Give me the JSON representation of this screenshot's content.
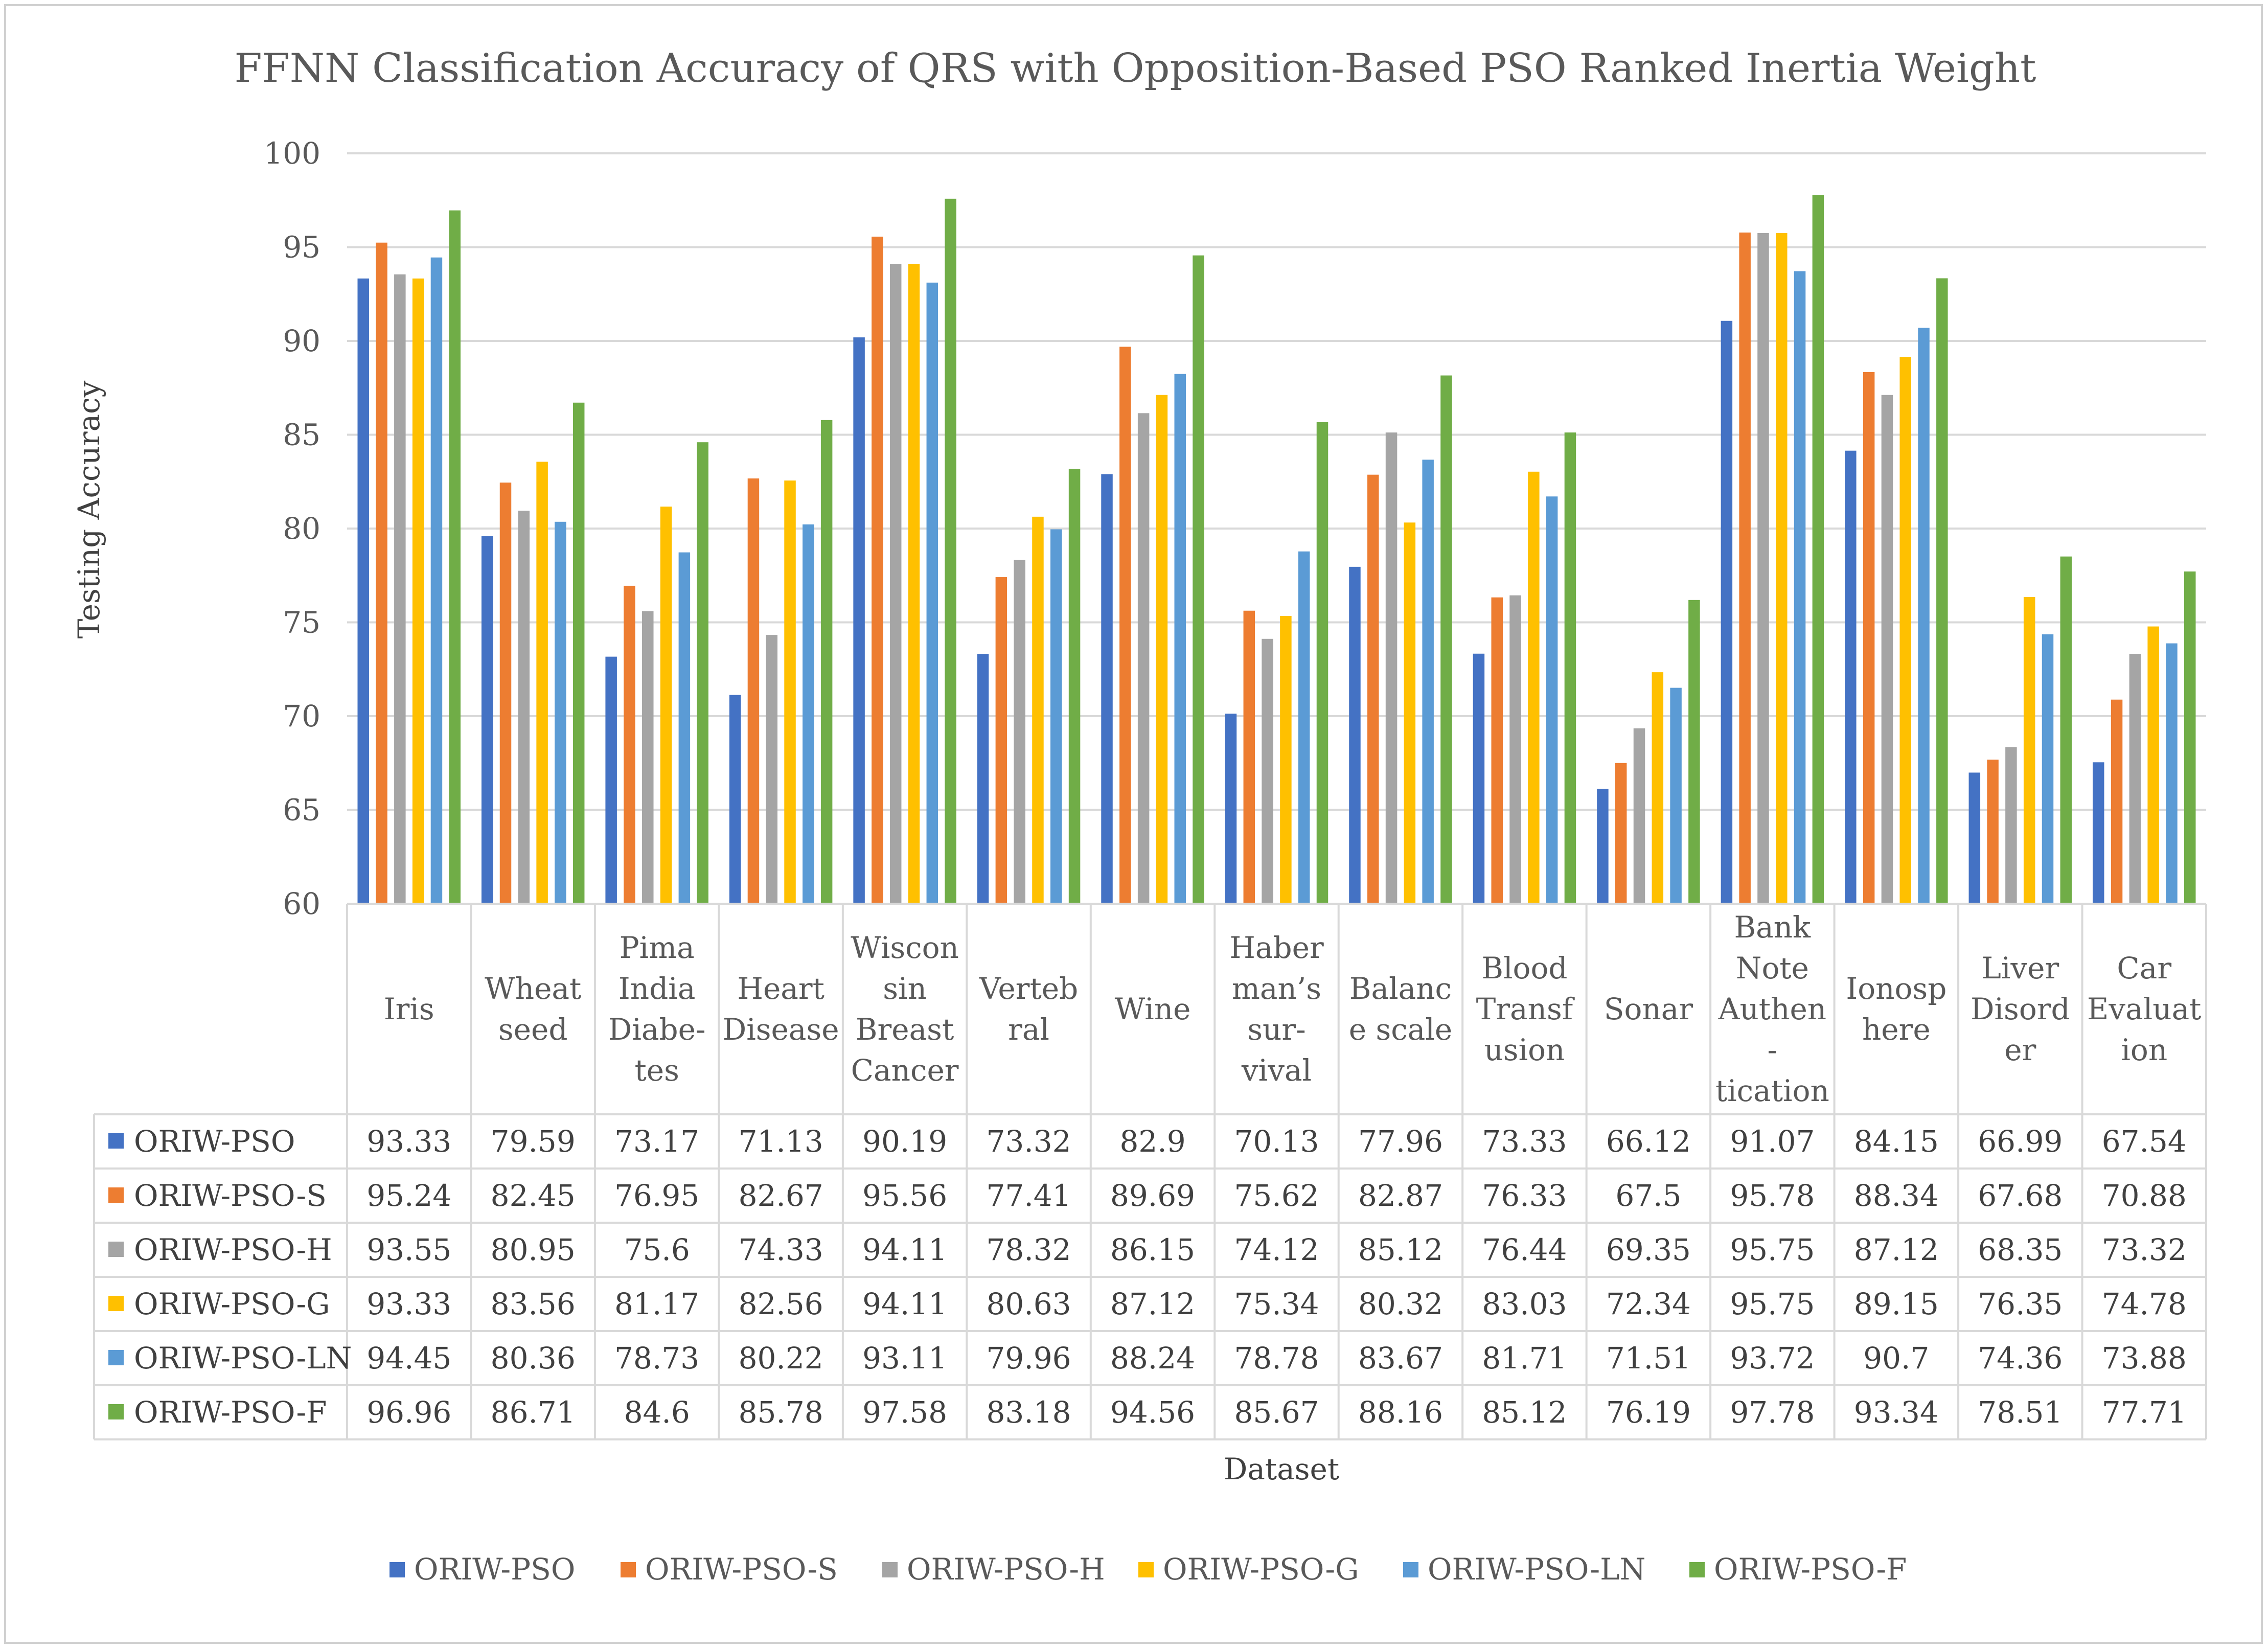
{
  "chart_data": {
    "type": "bar",
    "title": "FFNN Classification Accuracy of QRS with Opposition-Based PSO Ranked Inertia Weight",
    "xlabel": "Dataset",
    "ylabel": "Testing Accuracy",
    "ylim": [
      60,
      100
    ],
    "yticks": [
      60,
      65,
      70,
      75,
      80,
      85,
      90,
      95,
      100
    ],
    "grid": true,
    "legend_position": "bottom",
    "categories": [
      "Iris",
      "Wheat seed",
      "Pima India Diabetes",
      "Heart Disease",
      "Wisconsin Breast Cancer",
      "Vertebral",
      "Wine",
      "Haberman's survival",
      "Balance scale",
      "Blood Transfusion",
      "Sonar",
      "Bank Note Authentication",
      "Ionosphere",
      "Liver Disorder",
      "Car Evaluation"
    ],
    "category_label_lines": [
      [
        "Iris"
      ],
      [
        "Wheat",
        "seed"
      ],
      [
        "Pima",
        "India",
        "Diabe-",
        "tes"
      ],
      [
        "Heart",
        "Disease"
      ],
      [
        "Wiscon",
        "sin",
        "Breast",
        "Cancer"
      ],
      [
        "Verteb",
        "ral"
      ],
      [
        "Wine"
      ],
      [
        "Haber",
        "man’s",
        "sur-",
        "vival"
      ],
      [
        "Balanc",
        "e scale"
      ],
      [
        "Blood",
        "Transf",
        "usion"
      ],
      [
        "Sonar"
      ],
      [
        "Bank",
        "Note",
        "Authen",
        "-",
        "tication"
      ],
      [
        "Ionosp",
        "here"
      ],
      [
        "Liver",
        "Disord",
        "er"
      ],
      [
        "Car",
        "Evaluat",
        "ion"
      ]
    ],
    "series": [
      {
        "name": "ORIW-PSO",
        "color": "#4472C4",
        "values": [
          93.33,
          79.59,
          73.17,
          71.13,
          90.19,
          73.32,
          82.9,
          70.13,
          77.96,
          73.33,
          66.12,
          91.07,
          84.15,
          66.99,
          67.54
        ],
        "labels": [
          "93.33",
          "79.59",
          "73.17",
          "71.13",
          "90.19",
          "73.32",
          "82.9",
          "70.13",
          "77.96",
          "73.33",
          "66.12",
          "91.07",
          "84.15",
          "66.99",
          "67.54"
        ]
      },
      {
        "name": "ORIW-PSO-S",
        "color": "#ED7D31",
        "values": [
          95.24,
          82.45,
          76.95,
          82.67,
          95.56,
          77.41,
          89.69,
          75.62,
          82.87,
          76.33,
          67.5,
          95.78,
          88.34,
          67.68,
          70.88
        ],
        "labels": [
          "95.24",
          "82.45",
          "76.95",
          "82.67",
          "95.56",
          "77.41",
          "89.69",
          "75.62",
          "82.87",
          "76.33",
          "67.5",
          "95.78",
          "88.34",
          "67.68",
          "70.88"
        ]
      },
      {
        "name": "ORIW-PSO-H",
        "color": "#A5A5A5",
        "values": [
          93.55,
          80.95,
          75.6,
          74.33,
          94.11,
          78.32,
          86.15,
          74.12,
          85.12,
          76.44,
          69.35,
          95.75,
          87.12,
          68.35,
          73.32
        ],
        "labels": [
          "93.55",
          "80.95",
          "75.6",
          "74.33",
          "94.11",
          "78.32",
          "86.15",
          "74.12",
          "85.12",
          "76.44",
          "69.35",
          "95.75",
          "87.12",
          "68.35",
          "73.32"
        ]
      },
      {
        "name": "ORIW-PSO-G",
        "color": "#FFC000",
        "values": [
          93.33,
          83.56,
          81.17,
          82.56,
          94.11,
          80.63,
          87.12,
          75.34,
          80.32,
          83.03,
          72.34,
          95.75,
          89.15,
          76.35,
          74.78
        ],
        "labels": [
          "93.33",
          "83.56",
          "81.17",
          "82.56",
          "94.11",
          "80.63",
          "87.12",
          "75.34",
          "80.32",
          "83.03",
          "72.34",
          "95.75",
          "89.15",
          "76.35",
          "74.78"
        ]
      },
      {
        "name": "ORIW-PSO-LN",
        "color": "#5B9BD5",
        "values": [
          94.45,
          80.36,
          78.73,
          80.22,
          93.11,
          79.96,
          88.24,
          78.78,
          83.67,
          81.71,
          71.51,
          93.72,
          90.7,
          74.36,
          73.88
        ],
        "labels": [
          "94.45",
          "80.36",
          "78.73",
          "80.22",
          "93.11",
          "79.96",
          "88.24",
          "78.78",
          "83.67",
          "81.71",
          "71.51",
          "93.72",
          "90.7",
          "74.36",
          "73.88"
        ]
      },
      {
        "name": "ORIW-PSO-F",
        "color": "#70AD47",
        "values": [
          96.96,
          86.71,
          84.6,
          85.78,
          97.58,
          83.18,
          94.56,
          85.67,
          88.16,
          85.12,
          76.19,
          97.78,
          93.34,
          78.51,
          77.71
        ],
        "labels": [
          "96.96",
          "86.71",
          "84.6",
          "85.78",
          "97.58",
          "83.18",
          "94.56",
          "85.67",
          "88.16",
          "85.12",
          "76.19",
          "97.78",
          "93.34",
          "78.51",
          "77.71"
        ]
      }
    ]
  }
}
